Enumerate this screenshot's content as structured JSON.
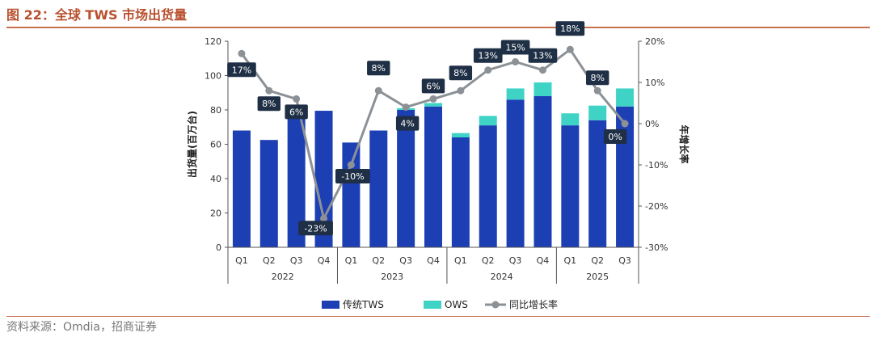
{
  "header": {
    "figure_title": "图 22：全球 TWS 市场出货量"
  },
  "footer": {
    "source": "资料来源：Omdia，招商证券"
  },
  "chart_data": {
    "type": "bar",
    "stacked": true,
    "categories": [
      "Q1",
      "Q2",
      "Q3",
      "Q4",
      "Q1",
      "Q2",
      "Q3",
      "Q4",
      "Q1",
      "Q2",
      "Q3",
      "Q4",
      "Q1",
      "Q2",
      "Q3"
    ],
    "years": [
      {
        "label": "2022",
        "quarters": 4
      },
      {
        "label": "2023",
        "quarters": 4
      },
      {
        "label": "2024",
        "quarters": 4
      },
      {
        "label": "2025",
        "quarters": 3
      }
    ],
    "series": [
      {
        "name": "传统TWS",
        "kind": "bar",
        "axis": "left",
        "color": "#1c3fb4",
        "values": [
          68,
          62.5,
          76.5,
          79.5,
          61,
          68,
          80,
          82,
          64,
          71,
          86,
          88,
          71,
          74,
          82
        ]
      },
      {
        "name": "OWS",
        "kind": "bar",
        "axis": "left",
        "color": "#3fd3c6",
        "values": [
          0,
          0,
          0,
          0,
          0,
          0,
          1,
          2,
          2.5,
          5.5,
          6.5,
          8,
          7,
          8.5,
          10.5
        ]
      },
      {
        "name": "同比增长率",
        "kind": "line",
        "axis": "right",
        "color": "#8c9196",
        "values": [
          17,
          8,
          6,
          -23,
          -10,
          8,
          4,
          6,
          8,
          13,
          15,
          13,
          18,
          8,
          0
        ],
        "labels": [
          "17%",
          "8%",
          "6%",
          "-23%",
          "-10%",
          "8%",
          "4%",
          "6%",
          "8%",
          "13%",
          "15%",
          "13%",
          "18%",
          "8%",
          "0%"
        ]
      }
    ],
    "left_axis": {
      "label": "出货量(百万台)",
      "ylim": [
        0,
        120
      ],
      "ticks": [
        0,
        20,
        40,
        60,
        80,
        100,
        120
      ],
      "tick_labels": [
        "0",
        "20",
        "40",
        "60",
        "80",
        "100",
        "120"
      ]
    },
    "right_axis": {
      "label": "年增长率",
      "ylim": [
        -30,
        20
      ],
      "ticks": [
        -30,
        -20,
        -10,
        0,
        10,
        20
      ],
      "tick_labels": [
        "-30%",
        "-20%",
        "-10%",
        "0%",
        "10%",
        "20%"
      ]
    },
    "grid": false,
    "legend_position": "bottom"
  }
}
